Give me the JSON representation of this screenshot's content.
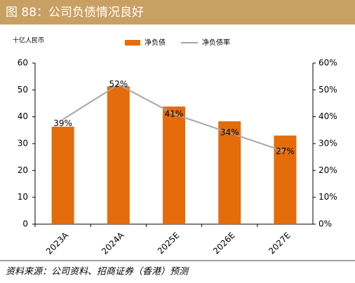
{
  "chart_data": {
    "type": "bar",
    "title": "图 88：公司负债情况良好",
    "y_label": "十亿人民币",
    "categories": [
      "2023A",
      "2024A",
      "2025E",
      "2026E",
      "2027E"
    ],
    "series": [
      {
        "name": "净负债",
        "type": "bar",
        "color": "#e46c0a",
        "values": [
          36.3,
          51.3,
          43.8,
          38.3,
          33.0
        ]
      },
      {
        "name": "净负债率",
        "type": "line",
        "axis": "y2",
        "color": "#a6a6a6",
        "values": [
          39,
          52,
          41,
          34,
          27
        ],
        "value_labels": [
          "39%",
          "52%",
          "41%",
          "34%",
          "27%"
        ]
      }
    ],
    "ylim": [
      0,
      60
    ],
    "yticks": [
      0,
      10,
      20,
      30,
      40,
      50,
      60
    ],
    "y2lim": [
      0,
      60
    ],
    "y2ticks": [
      {
        "value": 0,
        "label": "0%"
      },
      {
        "value": 10,
        "label": "10%"
      },
      {
        "value": 20,
        "label": "20%"
      },
      {
        "value": 30,
        "label": "30%"
      },
      {
        "value": 40,
        "label": "40%"
      },
      {
        "value": 50,
        "label": "50%"
      },
      {
        "value": 60,
        "label": "60%"
      }
    ],
    "legend": "top",
    "source": "资料来源：公司资料、招商证券（香港）预测"
  }
}
